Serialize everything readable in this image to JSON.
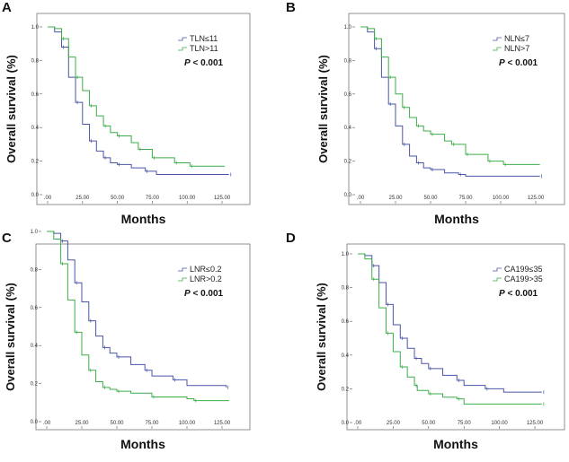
{
  "colors": {
    "group1": "#4a55a8",
    "group2": "#3cae4a"
  },
  "chart_data": [
    {
      "type": "line",
      "panel": "A",
      "xlabel": "Months",
      "ylabel": "Overall survival (%)",
      "xlim": [
        0,
        130
      ],
      "ylim": [
        0,
        1
      ],
      "xticks": [
        ".00",
        "25.00",
        "50.00",
        "75.00",
        "100.00",
        "125.00"
      ],
      "yticks": [
        "0.0",
        "0.2",
        "0.4",
        "0.6",
        "0.8",
        "1.0"
      ],
      "annotation": "P < 0.001",
      "series": [
        {
          "name": "TLN≤11",
          "points": [
            [
              0,
              1
            ],
            [
              5,
              0.97
            ],
            [
              10,
              0.88
            ],
            [
              15,
              0.7
            ],
            [
              20,
              0.55
            ],
            [
              25,
              0.42
            ],
            [
              30,
              0.32
            ],
            [
              35,
              0.26
            ],
            [
              40,
              0.22
            ],
            [
              45,
              0.19
            ],
            [
              50,
              0.18
            ],
            [
              60,
              0.16
            ],
            [
              70,
              0.14
            ],
            [
              78,
              0.12
            ],
            [
              130,
              0.12
            ]
          ]
        },
        {
          "name": "TLN>11",
          "points": [
            [
              0,
              1
            ],
            [
              5,
              0.99
            ],
            [
              10,
              0.93
            ],
            [
              15,
              0.82
            ],
            [
              20,
              0.7
            ],
            [
              25,
              0.62
            ],
            [
              30,
              0.53
            ],
            [
              35,
              0.47
            ],
            [
              40,
              0.41
            ],
            [
              45,
              0.37
            ],
            [
              50,
              0.35
            ],
            [
              60,
              0.31
            ],
            [
              65,
              0.27
            ],
            [
              74,
              0.27
            ],
            [
              75,
              0.22
            ],
            [
              90,
              0.22
            ],
            [
              91,
              0.19
            ],
            [
              101,
              0.19
            ],
            [
              102,
              0.17
            ],
            [
              127,
              0.17
            ]
          ]
        }
      ]
    },
    {
      "type": "line",
      "panel": "B",
      "xlabel": "Months",
      "ylabel": "Overall survival (%)",
      "xlim": [
        0,
        130
      ],
      "ylim": [
        0,
        1
      ],
      "xticks": [
        ".00",
        "25.00",
        "50.00",
        "75.00",
        "100.00",
        "125.00"
      ],
      "yticks": [
        "0.0",
        "0.2",
        "0.4",
        "0.6",
        "0.8",
        "1.0"
      ],
      "annotation": "P < 0.001",
      "series": [
        {
          "name": "NLN≤7",
          "points": [
            [
              0,
              1
            ],
            [
              5,
              0.97
            ],
            [
              10,
              0.87
            ],
            [
              15,
              0.7
            ],
            [
              20,
              0.54
            ],
            [
              25,
              0.41
            ],
            [
              30,
              0.3
            ],
            [
              35,
              0.23
            ],
            [
              40,
              0.19
            ],
            [
              45,
              0.16
            ],
            [
              50,
              0.15
            ],
            [
              60,
              0.13
            ],
            [
              70,
              0.12
            ],
            [
              75,
              0.11
            ],
            [
              128,
              0.11
            ]
          ]
        },
        {
          "name": "NLN>7",
          "points": [
            [
              0,
              1
            ],
            [
              5,
              0.99
            ],
            [
              10,
              0.93
            ],
            [
              15,
              0.82
            ],
            [
              20,
              0.7
            ],
            [
              25,
              0.6
            ],
            [
              30,
              0.52
            ],
            [
              35,
              0.46
            ],
            [
              40,
              0.41
            ],
            [
              45,
              0.38
            ],
            [
              50,
              0.36
            ],
            [
              60,
              0.32
            ],
            [
              65,
              0.3
            ],
            [
              74,
              0.3
            ],
            [
              75,
              0.24
            ],
            [
              90,
              0.24
            ],
            [
              91,
              0.2
            ],
            [
              101,
              0.2
            ],
            [
              102,
              0.18
            ],
            [
              128,
              0.18
            ]
          ]
        }
      ]
    },
    {
      "type": "line",
      "panel": "C",
      "xlabel": "Months",
      "ylabel": "Overall survival (%)",
      "xlim": [
        0,
        130
      ],
      "ylim": [
        0,
        1
      ],
      "xticks": [
        ".00",
        "25.00",
        "50.00",
        "75.00",
        "100.00",
        "125.00"
      ],
      "yticks": [
        "0.0",
        "0.2",
        "0.4",
        "0.6",
        "0.8",
        "1.0"
      ],
      "annotation": "P < 0.001",
      "series": [
        {
          "name": "LNR≤0.2",
          "points": [
            [
              0,
              1
            ],
            [
              5,
              0.99
            ],
            [
              10,
              0.95
            ],
            [
              15,
              0.85
            ],
            [
              20,
              0.73
            ],
            [
              25,
              0.63
            ],
            [
              30,
              0.53
            ],
            [
              35,
              0.45
            ],
            [
              40,
              0.39
            ],
            [
              45,
              0.36
            ],
            [
              50,
              0.34
            ],
            [
              60,
              0.3
            ],
            [
              70,
              0.27
            ],
            [
              75,
              0.24
            ],
            [
              90,
              0.22
            ],
            [
              100,
              0.19
            ],
            [
              128,
              0.18
            ]
          ]
        },
        {
          "name": "LNR>0.2",
          "points": [
            [
              0,
              1
            ],
            [
              5,
              0.96
            ],
            [
              10,
              0.83
            ],
            [
              15,
              0.64
            ],
            [
              20,
              0.47
            ],
            [
              25,
              0.35
            ],
            [
              30,
              0.27
            ],
            [
              35,
              0.21
            ],
            [
              40,
              0.18
            ],
            [
              45,
              0.17
            ],
            [
              50,
              0.16
            ],
            [
              60,
              0.15
            ],
            [
              75,
              0.13
            ],
            [
              100,
              0.12
            ],
            [
              105,
              0.11
            ],
            [
              130,
              0.11
            ]
          ]
        }
      ]
    },
    {
      "type": "line",
      "panel": "D",
      "xlabel": "Months",
      "ylabel": "Overall survival (%)",
      "xlim": [
        0,
        130
      ],
      "ylim": [
        0,
        1
      ],
      "xticks": [
        ".00",
        "25.00",
        "50.00",
        "75.00",
        "100.00",
        "125.00"
      ],
      "yticks": [
        "0.0",
        "0.2",
        "0.4",
        "0.6",
        "0.8",
        "1.0"
      ],
      "annotation": "P < 0.001",
      "series": [
        {
          "name": "CA199≤35",
          "points": [
            [
              0,
              1
            ],
            [
              5,
              0.99
            ],
            [
              10,
              0.93
            ],
            [
              15,
              0.83
            ],
            [
              20,
              0.7
            ],
            [
              25,
              0.58
            ],
            [
              30,
              0.5
            ],
            [
              35,
              0.44
            ],
            [
              40,
              0.38
            ],
            [
              45,
              0.35
            ],
            [
              50,
              0.32
            ],
            [
              60,
              0.28
            ],
            [
              70,
              0.25
            ],
            [
              75,
              0.22
            ],
            [
              90,
              0.2
            ],
            [
              103,
              0.18
            ],
            [
              130,
              0.18
            ]
          ]
        },
        {
          "name": "CA199>35",
          "points": [
            [
              0,
              1
            ],
            [
              5,
              0.97
            ],
            [
              10,
              0.85
            ],
            [
              15,
              0.68
            ],
            [
              20,
              0.53
            ],
            [
              25,
              0.42
            ],
            [
              30,
              0.33
            ],
            [
              35,
              0.27
            ],
            [
              40,
              0.22
            ],
            [
              42,
              0.19
            ],
            [
              50,
              0.17
            ],
            [
              60,
              0.15
            ],
            [
              70,
              0.14
            ],
            [
              75,
              0.11
            ],
            [
              130,
              0.11
            ]
          ]
        }
      ]
    }
  ]
}
